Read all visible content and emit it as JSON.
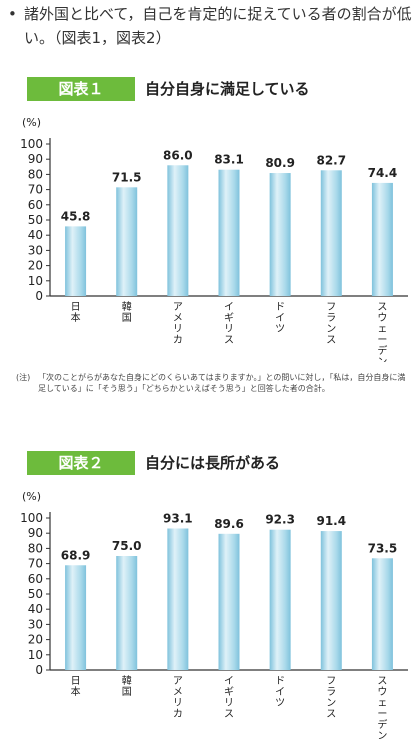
{
  "bullet": {
    "dot": "•",
    "text": "諸外国と比べて，自己を肯定的に捉えている者の割合が低い。（図表1，図表2）"
  },
  "notes": {
    "label": "(注)",
    "text": "「次のことがらがあなた自身にどのくらいあてはまりますか。」との問いに対し，「私は，自分自身に満足している」に「そう思う」「どちらかといえばそう思う」と回答した者の合計。"
  },
  "colors": {
    "badge": "#6dbb3c",
    "bar_light": "#dff1f8",
    "bar_mid": "#a9d9ea",
    "bar_edge": "#7fc2dc"
  },
  "chart_data": [
    {
      "type": "bar",
      "badge": "図表１",
      "title": "自分自身に満足している",
      "unit": "(%)",
      "ylim": [
        0,
        100
      ],
      "yticks": [
        0,
        10,
        20,
        30,
        40,
        50,
        60,
        70,
        80,
        90,
        100
      ],
      "categories": [
        "日本",
        "韓国",
        "アメリカ",
        "イギリス",
        "ドイツ",
        "フランス",
        "スウェーデン"
      ],
      "values": [
        45.8,
        71.5,
        86.0,
        83.1,
        80.9,
        82.7,
        74.4
      ],
      "labels": [
        "45.8",
        "71.5",
        "86.0",
        "83.1",
        "80.9",
        "82.7",
        "74.4"
      ]
    },
    {
      "type": "bar",
      "badge": "図表２",
      "title": "自分には長所がある",
      "unit": "(%)",
      "ylim": [
        0,
        100
      ],
      "yticks": [
        0,
        10,
        20,
        30,
        40,
        50,
        60,
        70,
        80,
        90,
        100
      ],
      "categories": [
        "日本",
        "韓国",
        "アメリカ",
        "イギリス",
        "ドイツ",
        "フランス",
        "スウェーデン"
      ],
      "values": [
        68.9,
        75.0,
        93.1,
        89.6,
        92.3,
        91.4,
        73.5
      ],
      "labels": [
        "68.9",
        "75.0",
        "93.1",
        "89.6",
        "92.3",
        "91.4",
        "73.5"
      ]
    }
  ]
}
